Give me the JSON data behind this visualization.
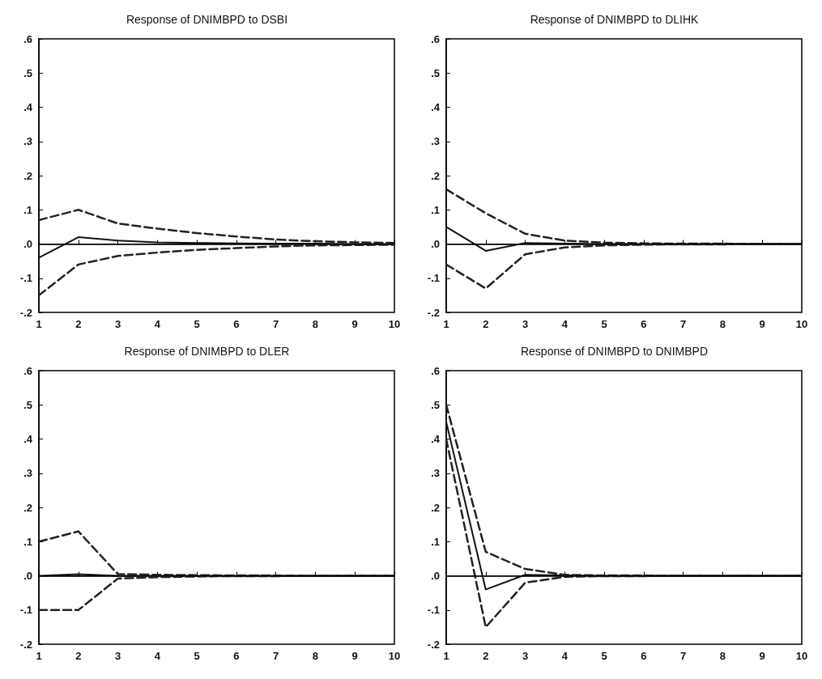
{
  "chart_data": [
    {
      "type": "line",
      "title": "Response of DNIMBPD to DSBI",
      "x": [
        1,
        2,
        3,
        4,
        5,
        6,
        7,
        8,
        9,
        10
      ],
      "xlim": [
        1,
        10
      ],
      "xticks": [
        1,
        2,
        3,
        4,
        5,
        6,
        7,
        8,
        9,
        10
      ],
      "ylim": [
        -0.2,
        0.6
      ],
      "yticks": [
        {
          "value": -0.2,
          "label": "-.2"
        },
        {
          "value": -0.1,
          "label": "-.1"
        },
        {
          "value": 0,
          "label": ".0"
        },
        {
          "value": 0.1,
          "label": ".1"
        },
        {
          "value": 0.2,
          "label": ".2"
        },
        {
          "value": 0.3,
          "label": ".3"
        },
        {
          "value": 0.4,
          "label": ".4"
        },
        {
          "value": 0.5,
          "label": ".5"
        },
        {
          "value": 0.6,
          "label": ".6"
        }
      ],
      "grid": false,
      "marker": "none",
      "ref_lines": [
        {
          "axis": "y",
          "value": 0,
          "color": "#000000",
          "line_style": "solid"
        }
      ],
      "series": [
        {
          "color": "#111111",
          "line_style": "solid",
          "values": [
            -0.04,
            0.02,
            0.01,
            0.005,
            0.003,
            0.002,
            0.001,
            0.001,
            0.0,
            0.0
          ]
        },
        {
          "color": "#222222",
          "line_style": "dashed",
          "values": [
            0.07,
            0.1,
            0.06,
            0.045,
            0.032,
            0.022,
            0.013,
            0.008,
            0.005,
            0.003
          ]
        },
        {
          "color": "#222222",
          "line_style": "dashed",
          "values": [
            -0.15,
            -0.06,
            -0.035,
            -0.025,
            -0.017,
            -0.012,
            -0.007,
            -0.004,
            -0.003,
            -0.002
          ]
        }
      ]
    },
    {
      "type": "line",
      "title": "Response of DNIMBPD to DLIHK",
      "x": [
        1,
        2,
        3,
        4,
        5,
        6,
        7,
        8,
        9,
        10
      ],
      "xlim": [
        1,
        10
      ],
      "xticks": [
        1,
        2,
        3,
        4,
        5,
        6,
        7,
        8,
        9,
        10
      ],
      "ylim": [
        -0.2,
        0.6
      ],
      "yticks": [
        {
          "value": -0.2,
          "label": "-.2"
        },
        {
          "value": -0.1,
          "label": "-.1"
        },
        {
          "value": 0,
          "label": ".0"
        },
        {
          "value": 0.1,
          "label": ".1"
        },
        {
          "value": 0.2,
          "label": ".2"
        },
        {
          "value": 0.3,
          "label": ".3"
        },
        {
          "value": 0.4,
          "label": ".4"
        },
        {
          "value": 0.5,
          "label": ".5"
        },
        {
          "value": 0.6,
          "label": ".6"
        }
      ],
      "grid": false,
      "marker": "none",
      "ref_lines": [
        {
          "axis": "y",
          "value": 0,
          "color": "#000000",
          "line_style": "solid"
        }
      ],
      "series": [
        {
          "color": "#111111",
          "line_style": "solid",
          "values": [
            0.05,
            -0.02,
            0.003,
            0.001,
            0.0,
            0.0,
            0.0,
            0.0,
            0.0,
            0.0
          ]
        },
        {
          "color": "#222222",
          "line_style": "dashed",
          "values": [
            0.16,
            0.09,
            0.03,
            0.01,
            0.004,
            0.002,
            0.001,
            0.001,
            0.0,
            0.0
          ]
        },
        {
          "color": "#222222",
          "line_style": "dashed",
          "values": [
            -0.06,
            -0.13,
            -0.03,
            -0.01,
            -0.004,
            -0.002,
            -0.001,
            -0.001,
            0.0,
            0.0
          ]
        }
      ]
    },
    {
      "type": "line",
      "title": "Response of DNIMBPD to DLER",
      "x": [
        1,
        2,
        3,
        4,
        5,
        6,
        7,
        8,
        9,
        10
      ],
      "xlim": [
        1,
        10
      ],
      "xticks": [
        1,
        2,
        3,
        4,
        5,
        6,
        7,
        8,
        9,
        10
      ],
      "ylim": [
        -0.2,
        0.6
      ],
      "yticks": [
        {
          "value": -0.2,
          "label": "-.2"
        },
        {
          "value": -0.1,
          "label": "-.1"
        },
        {
          "value": 0,
          "label": ".0"
        },
        {
          "value": 0.1,
          "label": ".1"
        },
        {
          "value": 0.2,
          "label": ".2"
        },
        {
          "value": 0.3,
          "label": ".3"
        },
        {
          "value": 0.4,
          "label": ".4"
        },
        {
          "value": 0.5,
          "label": ".5"
        },
        {
          "value": 0.6,
          "label": ".6"
        }
      ],
      "grid": false,
      "marker": "none",
      "ref_lines": [
        {
          "axis": "y",
          "value": 0,
          "color": "#000000",
          "line_style": "solid"
        }
      ],
      "series": [
        {
          "color": "#111111",
          "line_style": "solid",
          "values": [
            0.0,
            0.005,
            0.0,
            0.0,
            0.0,
            0.0,
            0.0,
            0.0,
            0.0,
            0.0
          ]
        },
        {
          "color": "#222222",
          "line_style": "dashed",
          "values": [
            0.1,
            0.13,
            0.005,
            0.003,
            0.002,
            0.001,
            0.001,
            0.0,
            0.0,
            0.0
          ]
        },
        {
          "color": "#222222",
          "line_style": "dashed",
          "values": [
            -0.1,
            -0.1,
            -0.008,
            -0.004,
            -0.002,
            -0.001,
            -0.001,
            0.0,
            0.0,
            0.0
          ]
        }
      ]
    },
    {
      "type": "line",
      "title": "Response of DNIMBPD to DNIMBPD",
      "x": [
        1,
        2,
        3,
        4,
        5,
        6,
        7,
        8,
        9,
        10
      ],
      "xlim": [
        1,
        10
      ],
      "xticks": [
        1,
        2,
        3,
        4,
        5,
        6,
        7,
        8,
        9,
        10
      ],
      "ylim": [
        -0.2,
        0.6
      ],
      "yticks": [
        {
          "value": -0.2,
          "label": "-.2"
        },
        {
          "value": -0.1,
          "label": "-.1"
        },
        {
          "value": 0,
          "label": ".0"
        },
        {
          "value": 0.1,
          "label": ".1"
        },
        {
          "value": 0.2,
          "label": ".2"
        },
        {
          "value": 0.3,
          "label": ".3"
        },
        {
          "value": 0.4,
          "label": ".4"
        },
        {
          "value": 0.5,
          "label": ".5"
        },
        {
          "value": 0.6,
          "label": ".6"
        }
      ],
      "grid": false,
      "marker": "none",
      "ref_lines": [
        {
          "axis": "y",
          "value": 0,
          "color": "#000000",
          "line_style": "solid"
        }
      ],
      "series": [
        {
          "color": "#111111",
          "line_style": "solid",
          "values": [
            0.45,
            -0.04,
            0.003,
            0.001,
            0.0,
            0.0,
            0.0,
            0.0,
            0.0,
            0.0
          ]
        },
        {
          "color": "#222222",
          "line_style": "dashed",
          "values": [
            0.5,
            0.07,
            0.02,
            0.003,
            0.001,
            0.001,
            0.0,
            0.0,
            0.0,
            0.0
          ]
        },
        {
          "color": "#222222",
          "line_style": "dashed",
          "values": [
            0.4,
            -0.15,
            -0.02,
            -0.003,
            -0.001,
            -0.001,
            0.0,
            0.0,
            0.0,
            0.0
          ]
        }
      ]
    }
  ]
}
